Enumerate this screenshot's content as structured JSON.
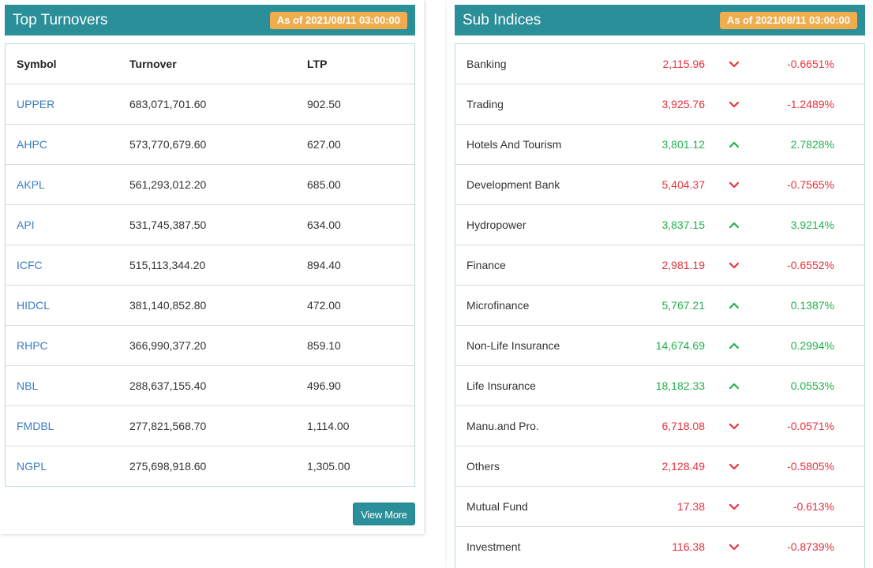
{
  "top_turnovers": {
    "title": "Top Turnovers",
    "as_of": "As of 2021/08/11 03:00:00",
    "columns": {
      "symbol": "Symbol",
      "turnover": "Turnover",
      "ltp": "LTP"
    },
    "rows": [
      {
        "symbol": "UPPER",
        "turnover": "683,071,701.60",
        "ltp": "902.50"
      },
      {
        "symbol": "AHPC",
        "turnover": "573,770,679.60",
        "ltp": "627.00"
      },
      {
        "symbol": "AKPL",
        "turnover": "561,293,012.20",
        "ltp": "685.00"
      },
      {
        "symbol": "API",
        "turnover": "531,745,387.50",
        "ltp": "634.00"
      },
      {
        "symbol": "ICFC",
        "turnover": "515,113,344.20",
        "ltp": "894.40"
      },
      {
        "symbol": "HIDCL",
        "turnover": "381,140,852.80",
        "ltp": "472.00"
      },
      {
        "symbol": "RHPC",
        "turnover": "366,990,377.20",
        "ltp": "859.10"
      },
      {
        "symbol": "NBL",
        "turnover": "288,637,155.40",
        "ltp": "496.90"
      },
      {
        "symbol": "FMDBL",
        "turnover": "277,821,568.70",
        "ltp": "1,114.00"
      },
      {
        "symbol": "NGPL",
        "turnover": "275,698,918.60",
        "ltp": "1,305.00"
      }
    ],
    "view_more_label": "View More"
  },
  "sub_indices": {
    "title": "Sub Indices",
    "as_of": "As of 2021/08/11 03:00:00",
    "rows": [
      {
        "name": "Banking",
        "value": "2,115.96",
        "direction": "down",
        "change": "-0.6651%"
      },
      {
        "name": "Trading",
        "value": "3,925.76",
        "direction": "down",
        "change": "-1.2489%"
      },
      {
        "name": "Hotels And Tourism",
        "value": "3,801.12",
        "direction": "up",
        "change": "2.7828%"
      },
      {
        "name": "Development Bank",
        "value": "5,404.37",
        "direction": "down",
        "change": "-0.7565%"
      },
      {
        "name": "Hydropower",
        "value": "3,837.15",
        "direction": "up",
        "change": "3.9214%"
      },
      {
        "name": "Finance",
        "value": "2,981.19",
        "direction": "down",
        "change": "-0.6552%"
      },
      {
        "name": "Microfinance",
        "value": "5,767.21",
        "direction": "up",
        "change": "0.1387%"
      },
      {
        "name": "Non-Life Insurance",
        "value": "14,674.69",
        "direction": "up",
        "change": "0.2994%"
      },
      {
        "name": "Life Insurance",
        "value": "18,182.33",
        "direction": "up",
        "change": "0.0553%"
      },
      {
        "name": "Manu.and Pro.",
        "value": "6,718.08",
        "direction": "down",
        "change": "-0.0571%"
      },
      {
        "name": "Others",
        "value": "2,128.49",
        "direction": "down",
        "change": "-0.5805%"
      },
      {
        "name": "Mutual Fund",
        "value": "17.38",
        "direction": "down",
        "change": "-0.613%"
      },
      {
        "name": "Investment",
        "value": "116.38",
        "direction": "down",
        "change": "-0.8739%"
      }
    ]
  },
  "colors": {
    "header_bg": "#2a8f98",
    "badge_bg": "#f0ad4e",
    "up": "#22b14c",
    "down": "#e8323c",
    "link": "#3a7cc2"
  },
  "icons": {
    "up": "chevron-up-icon",
    "down": "chevron-down-icon"
  }
}
